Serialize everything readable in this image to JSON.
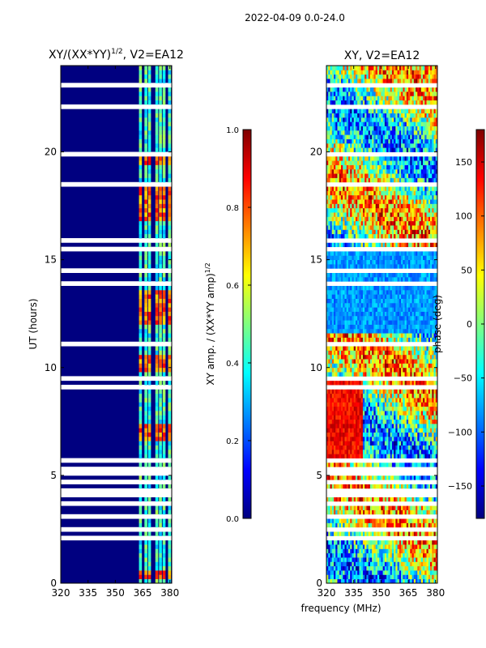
{
  "suptitle": "2022-04-09 0.0-24.0",
  "shared_xlabel": "frequency (MHz)",
  "colors": {
    "axis": "#000000",
    "blank_row": "#ffffff",
    "background": "#000080"
  },
  "chart_data": [
    {
      "type": "heatmap",
      "title_text": "XY/(XX*YY)",
      "title_exponent": "1/2",
      "title_suffix": ", V2=EA12",
      "ylabel": "UT (hours)",
      "xlabel": "",
      "xlim": [
        320,
        381
      ],
      "ylim": [
        0,
        24
      ],
      "xticks": [
        320,
        335,
        350,
        365,
        380
      ],
      "yticks": [
        0,
        5,
        10,
        15,
        20
      ],
      "signal_columns_mhz": [
        364,
        367,
        369,
        373,
        375,
        377,
        380
      ],
      "bright_time_bands_hours": [
        [
          0.2,
          0.5
        ],
        [
          6.5,
          7.2
        ],
        [
          9.8,
          10.4
        ],
        [
          12.0,
          13.5
        ],
        [
          16.8,
          18.3
        ],
        [
          19.3,
          19.7
        ]
      ],
      "colorbar": {
        "label_text": "XY amp. / (XX*YY amp)",
        "label_exponent": "1/2",
        "range": [
          0.0,
          1.0
        ],
        "ticks": [
          "0.0",
          "0.2",
          "0.4",
          "0.6",
          "0.8",
          "1.0"
        ]
      }
    },
    {
      "type": "heatmap",
      "title_text": "XY, V2=EA12",
      "ylabel": "",
      "xlabel": "",
      "xlim": [
        320,
        381
      ],
      "ylim": [
        0,
        24
      ],
      "xticks": [
        320,
        335,
        350,
        365,
        380
      ],
      "yticks": [
        0,
        5,
        10,
        15,
        20
      ],
      "colorbar": {
        "label_text": "phase (deg)",
        "range": [
          -180,
          180
        ],
        "ticks": [
          "150",
          "100",
          "50",
          "0",
          "−50",
          "−100",
          "−150"
        ],
        "tick_values": [
          150,
          100,
          50,
          0,
          -50,
          -100,
          -150
        ]
      }
    }
  ]
}
